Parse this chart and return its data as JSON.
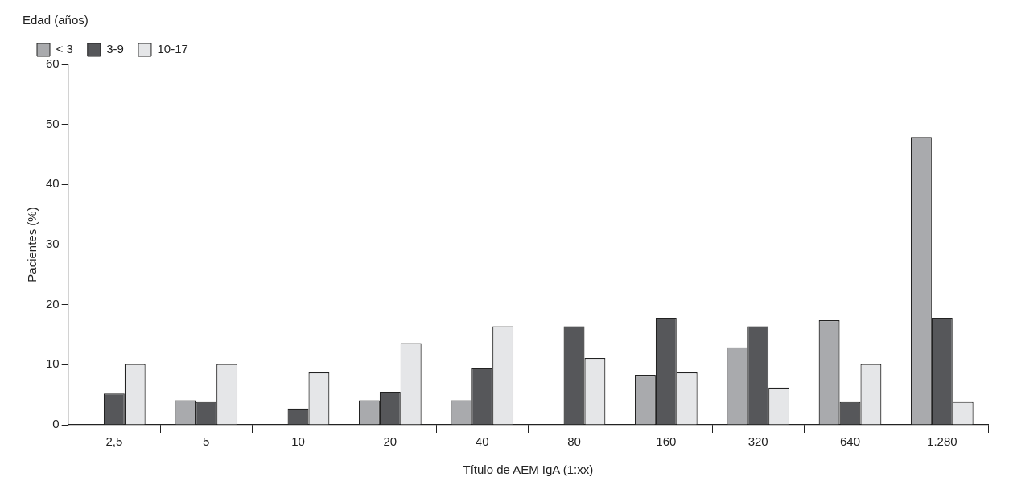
{
  "chart_data": {
    "type": "bar",
    "xlabel": "Título de AEM IgA (1:xx)",
    "ylabel": "Pacientes (%)",
    "legend_title": "Edad (años)",
    "legend": "top left",
    "grid": false,
    "categories": [
      "2,5",
      "5",
      "10",
      "20",
      "40",
      "80",
      "160",
      "320",
      "640",
      "1.280"
    ],
    "series": [
      {
        "name": "< 3",
        "color": "#a9aaad",
        "values": [
          0,
          4.1,
          0,
          4.1,
          4.1,
          0,
          8.3,
          12.9,
          17.4,
          47.9
        ]
      },
      {
        "name": "3-9",
        "color": "#56575a",
        "values": [
          5.2,
          3.8,
          2.7,
          5.5,
          9.4,
          16.4,
          17.8,
          16.4,
          3.8,
          17.8
        ]
      },
      {
        "name": "10-17",
        "color": "#e5e6e8",
        "values": [
          10.1,
          10.1,
          8.7,
          13.6,
          16.4,
          11.1,
          8.7,
          6.2,
          10.1,
          3.8
        ]
      }
    ],
    "ylim": [
      0,
      60
    ],
    "yticks": [
      0,
      10,
      20,
      30,
      40,
      50,
      60
    ]
  }
}
